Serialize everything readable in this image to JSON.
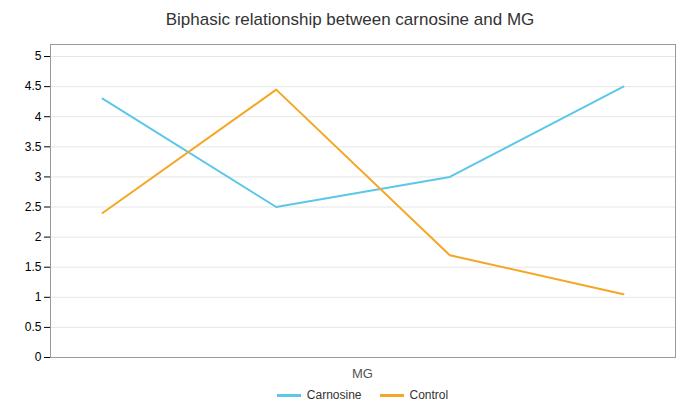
{
  "chart_data": {
    "type": "line",
    "title": "Biphasic relationship between carnosine and MG",
    "xlabel": "MG",
    "x": [
      0,
      1,
      2,
      3
    ],
    "series": [
      {
        "name": "Carnosine",
        "color": "#5BC8E8",
        "values": [
          4.3,
          2.5,
          3.0,
          4.5
        ]
      },
      {
        "name": "Control",
        "color": "#F5A623",
        "values": [
          2.4,
          4.45,
          1.7,
          1.05
        ]
      }
    ],
    "xlim": [
      -0.3,
      3.3
    ],
    "ylim": [
      0,
      5.2
    ],
    "yticks": [
      0,
      0.5,
      1,
      1.5,
      2,
      2.5,
      3,
      3.5,
      4,
      4.5,
      5
    ],
    "grid": true,
    "tick_labels": "y",
    "legend": "bottom"
  }
}
